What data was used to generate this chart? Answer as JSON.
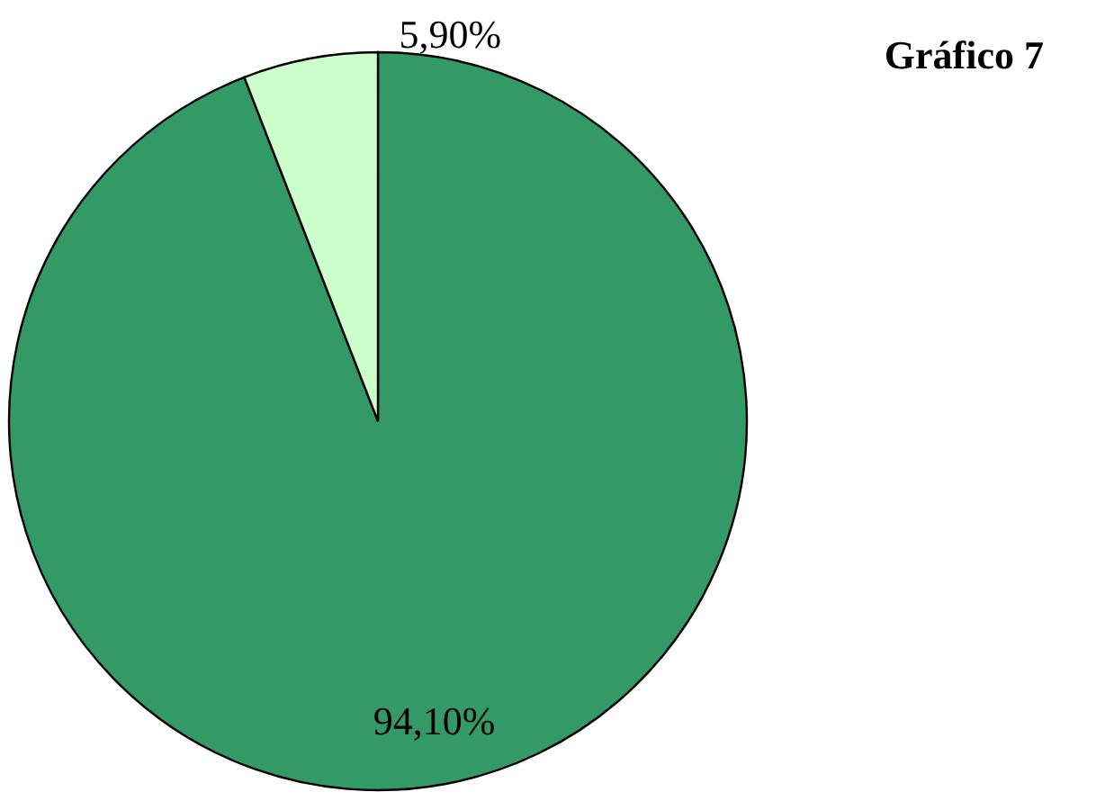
{
  "chart_data": {
    "type": "pie",
    "title": "Gráfico 7",
    "categories": [
      null,
      null
    ],
    "values": [
      94.1,
      5.9
    ],
    "colors": [
      "#339966",
      "#ccffcc"
    ],
    "value_labels": [
      "94,10%",
      "5,90%"
    ],
    "legend": false
  }
}
